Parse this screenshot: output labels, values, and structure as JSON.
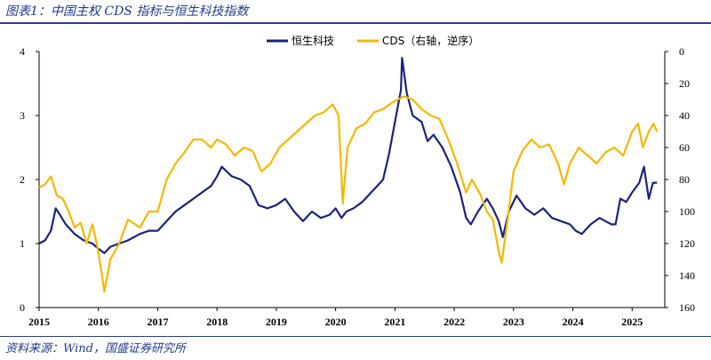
{
  "header": {
    "title": "图表1：中国主权 CDS 指标与恒生科技指数"
  },
  "footer": {
    "source": "资料来源：Wind，国盛证券研究所"
  },
  "colors": {
    "hstech": "#1a237e",
    "cds": "#f5b800"
  },
  "chart_data": {
    "type": "line",
    "x_ticks": [
      "2015",
      "2016",
      "2017",
      "2018",
      "2019",
      "2020",
      "2021",
      "2022",
      "2023",
      "2024",
      "2025"
    ],
    "y_left": {
      "ticks": [
        "0",
        "1",
        "2",
        "3",
        "4"
      ],
      "range": [
        0,
        4
      ]
    },
    "y_right": {
      "ticks": [
        "0",
        "20",
        "40",
        "60",
        "80",
        "100",
        "120",
        "140",
        "160"
      ],
      "range": [
        0,
        160
      ],
      "inverted": true
    },
    "legend_position": "top-center",
    "series": [
      {
        "name": "恒生科技",
        "axis": "left",
        "color": "#1a237e",
        "points": [
          [
            2015.0,
            1.0
          ],
          [
            2015.1,
            1.05
          ],
          [
            2015.2,
            1.2
          ],
          [
            2015.28,
            1.55
          ],
          [
            2015.35,
            1.45
          ],
          [
            2015.45,
            1.3
          ],
          [
            2015.6,
            1.15
          ],
          [
            2015.75,
            1.05
          ],
          [
            2015.9,
            1.0
          ],
          [
            2016.0,
            0.92
          ],
          [
            2016.1,
            0.85
          ],
          [
            2016.2,
            0.95
          ],
          [
            2016.35,
            1.0
          ],
          [
            2016.5,
            1.05
          ],
          [
            2016.7,
            1.15
          ],
          [
            2016.85,
            1.2
          ],
          [
            2017.0,
            1.2
          ],
          [
            2017.15,
            1.35
          ],
          [
            2017.3,
            1.5
          ],
          [
            2017.45,
            1.6
          ],
          [
            2017.6,
            1.7
          ],
          [
            2017.75,
            1.8
          ],
          [
            2017.9,
            1.9
          ],
          [
            2018.0,
            2.05
          ],
          [
            2018.08,
            2.2
          ],
          [
            2018.25,
            2.05
          ],
          [
            2018.4,
            2.0
          ],
          [
            2018.55,
            1.9
          ],
          [
            2018.7,
            1.6
          ],
          [
            2018.85,
            1.55
          ],
          [
            2019.0,
            1.6
          ],
          [
            2019.15,
            1.7
          ],
          [
            2019.3,
            1.5
          ],
          [
            2019.45,
            1.35
          ],
          [
            2019.6,
            1.5
          ],
          [
            2019.75,
            1.4
          ],
          [
            2019.9,
            1.45
          ],
          [
            2020.0,
            1.55
          ],
          [
            2020.1,
            1.4
          ],
          [
            2020.18,
            1.5
          ],
          [
            2020.3,
            1.55
          ],
          [
            2020.45,
            1.65
          ],
          [
            2020.6,
            1.8
          ],
          [
            2020.7,
            1.9
          ],
          [
            2020.8,
            2.0
          ],
          [
            2020.9,
            2.4
          ],
          [
            2021.0,
            2.9
          ],
          [
            2021.1,
            3.4
          ],
          [
            2021.12,
            3.9
          ],
          [
            2021.2,
            3.35
          ],
          [
            2021.3,
            3.0
          ],
          [
            2021.45,
            2.9
          ],
          [
            2021.55,
            2.6
          ],
          [
            2021.65,
            2.7
          ],
          [
            2021.8,
            2.5
          ],
          [
            2021.95,
            2.2
          ],
          [
            2022.1,
            1.8
          ],
          [
            2022.2,
            1.4
          ],
          [
            2022.28,
            1.3
          ],
          [
            2022.4,
            1.5
          ],
          [
            2022.55,
            1.7
          ],
          [
            2022.65,
            1.55
          ],
          [
            2022.75,
            1.35
          ],
          [
            2022.82,
            1.1
          ],
          [
            2022.92,
            1.5
          ],
          [
            2023.05,
            1.75
          ],
          [
            2023.2,
            1.55
          ],
          [
            2023.35,
            1.45
          ],
          [
            2023.5,
            1.55
          ],
          [
            2023.65,
            1.4
          ],
          [
            2023.8,
            1.35
          ],
          [
            2023.95,
            1.3
          ],
          [
            2024.05,
            1.2
          ],
          [
            2024.15,
            1.15
          ],
          [
            2024.3,
            1.3
          ],
          [
            2024.45,
            1.4
          ],
          [
            2024.55,
            1.35
          ],
          [
            2024.65,
            1.3
          ],
          [
            2024.72,
            1.3
          ],
          [
            2024.8,
            1.7
          ],
          [
            2024.9,
            1.65
          ],
          [
            2025.0,
            1.8
          ],
          [
            2025.12,
            1.95
          ],
          [
            2025.2,
            2.2
          ],
          [
            2025.28,
            1.7
          ],
          [
            2025.35,
            1.95
          ],
          [
            2025.42,
            1.95
          ]
        ]
      },
      {
        "name": "CDS（右轴，逆序）",
        "axis": "right",
        "color": "#f5b800",
        "points": [
          [
            2015.0,
            85
          ],
          [
            2015.1,
            83
          ],
          [
            2015.2,
            78
          ],
          [
            2015.3,
            90
          ],
          [
            2015.4,
            92
          ],
          [
            2015.5,
            100
          ],
          [
            2015.6,
            110
          ],
          [
            2015.7,
            107
          ],
          [
            2015.8,
            120
          ],
          [
            2015.9,
            108
          ],
          [
            2016.0,
            125
          ],
          [
            2016.1,
            150
          ],
          [
            2016.2,
            130
          ],
          [
            2016.35,
            120
          ],
          [
            2016.5,
            105
          ],
          [
            2016.7,
            110
          ],
          [
            2016.85,
            100
          ],
          [
            2017.0,
            100
          ],
          [
            2017.15,
            80
          ],
          [
            2017.3,
            70
          ],
          [
            2017.45,
            63
          ],
          [
            2017.6,
            55
          ],
          [
            2017.75,
            55
          ],
          [
            2017.9,
            60
          ],
          [
            2018.0,
            55
          ],
          [
            2018.15,
            58
          ],
          [
            2018.3,
            65
          ],
          [
            2018.45,
            60
          ],
          [
            2018.6,
            62
          ],
          [
            2018.75,
            75
          ],
          [
            2018.9,
            70
          ],
          [
            2019.05,
            60
          ],
          [
            2019.2,
            55
          ],
          [
            2019.35,
            50
          ],
          [
            2019.5,
            45
          ],
          [
            2019.65,
            40
          ],
          [
            2019.8,
            38
          ],
          [
            2019.95,
            33
          ],
          [
            2020.05,
            40
          ],
          [
            2020.12,
            95
          ],
          [
            2020.2,
            60
          ],
          [
            2020.35,
            48
          ],
          [
            2020.5,
            45
          ],
          [
            2020.65,
            38
          ],
          [
            2020.8,
            36
          ],
          [
            2020.95,
            32
          ],
          [
            2021.05,
            30
          ],
          [
            2021.15,
            28
          ],
          [
            2021.3,
            30
          ],
          [
            2021.45,
            36
          ],
          [
            2021.6,
            40
          ],
          [
            2021.75,
            42
          ],
          [
            2021.9,
            55
          ],
          [
            2022.05,
            70
          ],
          [
            2022.2,
            88
          ],
          [
            2022.3,
            80
          ],
          [
            2022.45,
            90
          ],
          [
            2022.55,
            100
          ],
          [
            2022.65,
            105
          ],
          [
            2022.75,
            125
          ],
          [
            2022.8,
            132
          ],
          [
            2022.9,
            105
          ],
          [
            2023.0,
            75
          ],
          [
            2023.15,
            62
          ],
          [
            2023.3,
            55
          ],
          [
            2023.45,
            60
          ],
          [
            2023.6,
            58
          ],
          [
            2023.75,
            70
          ],
          [
            2023.85,
            83
          ],
          [
            2023.95,
            70
          ],
          [
            2024.1,
            60
          ],
          [
            2024.25,
            65
          ],
          [
            2024.4,
            70
          ],
          [
            2024.55,
            63
          ],
          [
            2024.7,
            60
          ],
          [
            2024.85,
            65
          ],
          [
            2025.0,
            50
          ],
          [
            2025.1,
            45
          ],
          [
            2025.18,
            60
          ],
          [
            2025.28,
            50
          ],
          [
            2025.36,
            45
          ],
          [
            2025.42,
            50
          ]
        ]
      }
    ]
  }
}
